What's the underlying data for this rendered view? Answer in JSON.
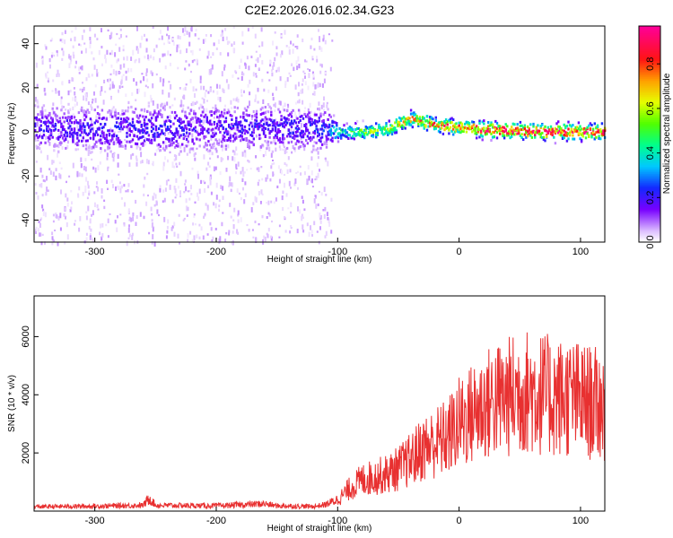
{
  "chart_data": [
    {
      "type": "heatmap",
      "title": "C2E2.2026.016.02.34.G23",
      "xlabel": "Height of straight line (km)",
      "ylabel": "Frequency (Hz)",
      "xlim": [
        -350,
        120
      ],
      "ylim": [
        -50,
        48
      ],
      "x_ticks": [
        -300,
        -200,
        -100,
        0,
        100
      ],
      "y_ticks": [
        -40,
        -20,
        0,
        20,
        40
      ],
      "grid": false,
      "colorbar": {
        "label": "Normalized spectral amplitude",
        "range": [
          0,
          0.97
        ],
        "ticks": [
          0.0,
          0.2,
          0.4,
          0.6,
          0.8
        ],
        "tick_labels": [
          "0.0",
          "0.2",
          "0.4",
          "0.6",
          "0.8"
        ],
        "colormap": "rainbow (white-violet-blue-cyan-green-yellow-orange-red-pink)"
      },
      "signal_track": [
        {
          "x": -350,
          "freq_center": 2,
          "amplitude": 0.2,
          "spread_hz": 12
        },
        {
          "x": -300,
          "freq_center": 1,
          "amplitude": 0.22,
          "spread_hz": 12
        },
        {
          "x": -250,
          "freq_center": 1,
          "amplitude": 0.22,
          "spread_hz": 13
        },
        {
          "x": -200,
          "freq_center": 2,
          "amplitude": 0.2,
          "spread_hz": 13
        },
        {
          "x": -150,
          "freq_center": 2,
          "amplitude": 0.22,
          "spread_hz": 12
        },
        {
          "x": -110,
          "freq_center": 1,
          "amplitude": 0.25,
          "spread_hz": 11
        },
        {
          "x": -100,
          "freq_center": 0,
          "amplitude": 0.45,
          "spread_hz": 4
        },
        {
          "x": -80,
          "freq_center": 0,
          "amplitude": 0.55,
          "spread_hz": 4
        },
        {
          "x": -60,
          "freq_center": 1,
          "amplitude": 0.6,
          "spread_hz": 4
        },
        {
          "x": -40,
          "freq_center": 6,
          "amplitude": 0.75,
          "spread_hz": 4
        },
        {
          "x": -20,
          "freq_center": 3,
          "amplitude": 0.8,
          "spread_hz": 4
        },
        {
          "x": 0,
          "freq_center": 2,
          "amplitude": 0.8,
          "spread_hz": 4
        },
        {
          "x": 20,
          "freq_center": 1,
          "amplitude": 0.9,
          "spread_hz": 4
        },
        {
          "x": 60,
          "freq_center": 0,
          "amplitude": 0.92,
          "spread_hz": 4
        },
        {
          "x": 100,
          "freq_center": 0,
          "amplitude": 0.92,
          "spread_hz": 4
        },
        {
          "x": 120,
          "freq_center": 0,
          "amplitude": 0.92,
          "spread_hz": 4
        }
      ],
      "noise_region": {
        "x_range": [
          -350,
          -105
        ],
        "freq_range": [
          -50,
          48
        ],
        "amplitude": 0.05
      }
    },
    {
      "type": "line",
      "xlabel": "Height of straight line (km)",
      "ylabel": "SNR (10 * v/v)",
      "xlim": [
        -350,
        120
      ],
      "ylim": [
        0,
        7400
      ],
      "x_ticks": [
        -300,
        -200,
        -100,
        0,
        100
      ],
      "y_ticks": [
        2000,
        4000,
        6000
      ],
      "grid": false,
      "color": "#e83030",
      "series": [
        {
          "x": [
            -350,
            -300,
            -260,
            -255,
            -250,
            -200,
            -160,
            -150,
            -120,
            -110,
            -100,
            -90,
            -80,
            -70,
            -60,
            -50,
            -40,
            -30,
            -20,
            -10,
            0,
            10,
            20,
            30,
            40,
            50,
            60,
            70,
            80,
            90,
            100,
            110,
            120
          ],
          "y": [
            150,
            170,
            200,
            450,
            200,
            180,
            250,
            180,
            160,
            220,
            400,
            800,
            1100,
            1200,
            1300,
            1500,
            1800,
            2200,
            2400,
            2600,
            3100,
            3400,
            3700,
            3900,
            4000,
            4200,
            4200,
            4100,
            4000,
            4000,
            3900,
            3800,
            3700
          ]
        }
      ]
    }
  ]
}
